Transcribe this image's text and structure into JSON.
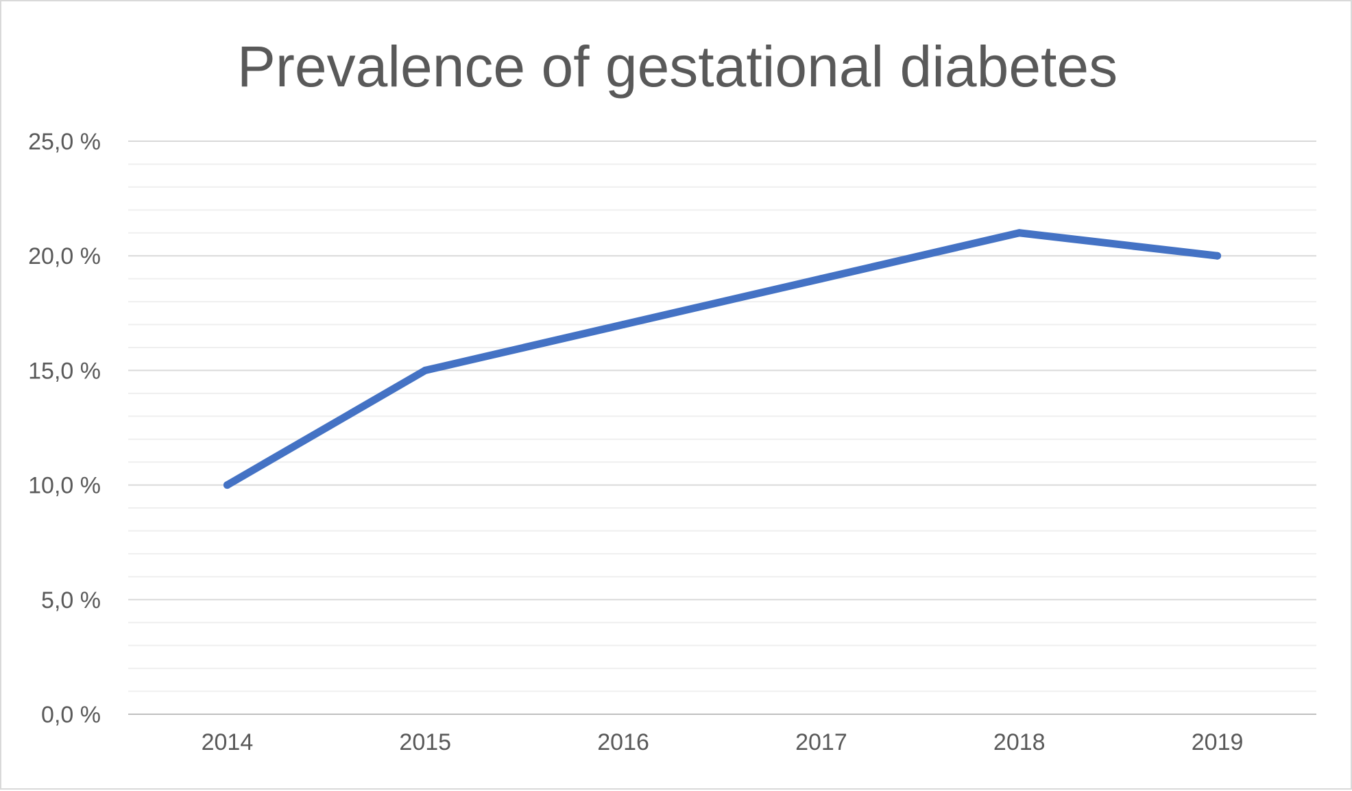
{
  "chart_data": {
    "type": "line",
    "title": "Prevalence of gestational diabetes",
    "xlabel": "",
    "ylabel": "",
    "categories": [
      "2014",
      "2015",
      "2016",
      "2017",
      "2018",
      "2019"
    ],
    "series": [
      {
        "values": [
          10.0,
          15.0,
          17.0,
          19.0,
          21.0,
          20.0
        ],
        "color": "#4472c4"
      }
    ],
    "ylim": [
      0,
      25
    ],
    "y_ticks": [
      0,
      5,
      10,
      15,
      20,
      25
    ],
    "y_tick_labels": [
      "0,0 %",
      "5,0 %",
      "10,0 %",
      "15,0 %",
      "20,0 %",
      "25,0 %"
    ],
    "y_minor_step": 1,
    "grid": true,
    "legend": "none",
    "colors": {
      "major_grid": "#d9d9d9",
      "minor_grid": "#efefef",
      "axis": "#bfbfbf",
      "text": "#595959"
    }
  }
}
